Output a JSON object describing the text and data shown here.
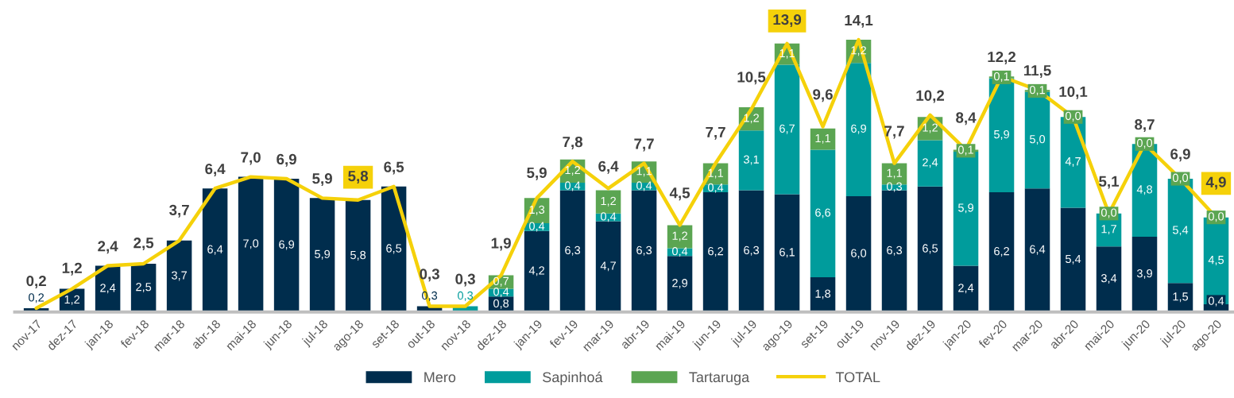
{
  "chart_data": {
    "type": "bar",
    "stacked": true,
    "legend": "bottom",
    "tick_labels": "x",
    "categories": [
      "nov-17",
      "dez-17",
      "jan-18",
      "fev-18",
      "mar-18",
      "abr-18",
      "mai-18",
      "jun-18",
      "jul-18",
      "ago-18",
      "set-18",
      "out-18",
      "nov-18",
      "dez-18",
      "jan-19",
      "fev-19",
      "mar-19",
      "abr-19",
      "mai-19",
      "jun-19",
      "jul-19",
      "ago-19",
      "set-19",
      "out-19",
      "nov-19",
      "dez-19",
      "jan-20",
      "fev-20",
      "mar-20",
      "abr-20",
      "mai-20",
      "jun-20",
      "jul-20",
      "ago-20"
    ],
    "series": [
      {
        "name": "Mero",
        "color": "#002d4d",
        "values": [
          0.2,
          1.2,
          2.4,
          2.5,
          3.7,
          6.4,
          7.0,
          6.9,
          5.9,
          5.8,
          6.5,
          0.3,
          null,
          0.8,
          4.2,
          6.3,
          4.7,
          6.3,
          2.9,
          6.2,
          6.3,
          6.1,
          1.8,
          6.0,
          6.3,
          6.5,
          2.4,
          6.2,
          6.4,
          5.4,
          3.4,
          3.9,
          1.5,
          0.4
        ],
        "value_labels": [
          "0,2",
          "1,2",
          "2,4",
          "2,5",
          "3,7",
          "6,4",
          "7,0",
          "6,9",
          "5,9",
          "5,8",
          "6,5",
          "0,3",
          null,
          "0,8",
          "4,2",
          "6,3",
          "4,7",
          "6,3",
          "2,9",
          "6,2",
          "6,3",
          "6,1",
          "1,8",
          "6,0",
          "6,3",
          "6,5",
          "2,4",
          "6,2",
          "6,4",
          "5,4",
          "3,4",
          "3,9",
          "1,5",
          "0,4"
        ]
      },
      {
        "name": "Sapinhoá",
        "color": "#009c9c",
        "values": [
          null,
          null,
          null,
          null,
          null,
          null,
          null,
          null,
          null,
          null,
          null,
          null,
          0.3,
          0.4,
          0.4,
          0.4,
          0.4,
          0.4,
          0.4,
          0.4,
          3.1,
          6.7,
          6.6,
          6.9,
          0.3,
          2.4,
          5.9,
          5.9,
          5.0,
          4.7,
          1.7,
          4.8,
          5.4,
          4.5
        ],
        "value_labels": [
          null,
          null,
          null,
          null,
          null,
          null,
          null,
          null,
          null,
          null,
          null,
          null,
          "0,3",
          "0,4",
          "0,4",
          "0,4",
          "0,4",
          "0,4",
          "0,4",
          "0,4",
          "3,1",
          "6,7",
          "6,6",
          "6,9",
          "0,3",
          "2,4",
          "5,9",
          "5,9",
          "5,0",
          "4,7",
          "1,7",
          "4,8",
          "5,4",
          "4,5"
        ]
      },
      {
        "name": "Tartaruga",
        "color": "#5ba552",
        "values": [
          null,
          null,
          null,
          null,
          null,
          null,
          null,
          null,
          null,
          null,
          null,
          null,
          null,
          0.7,
          1.3,
          1.2,
          1.2,
          1.1,
          1.2,
          1.1,
          1.2,
          1.1,
          1.1,
          1.2,
          1.1,
          1.2,
          0.1,
          0.1,
          0.1,
          0.0,
          0.0,
          0.0,
          0.0,
          0.0
        ],
        "value_labels": [
          null,
          null,
          null,
          null,
          null,
          null,
          null,
          null,
          null,
          null,
          null,
          null,
          null,
          "0,7",
          "1,3",
          "1,2",
          "1,2",
          "1,1",
          "1,2",
          "1,1",
          "1,2",
          "1,1",
          "1,1",
          "1,2",
          "1,1",
          "1,2",
          "0,1",
          "0,1",
          "0,1",
          "0,0",
          "0,0",
          "0,0",
          "0,0",
          "0,0"
        ]
      },
      {
        "name": "TOTAL",
        "type": "line",
        "color": "#f5d10a",
        "values": [
          0.2,
          1.2,
          2.4,
          2.5,
          3.7,
          6.4,
          7.0,
          6.9,
          5.9,
          5.8,
          6.5,
          0.3,
          0.3,
          1.9,
          5.9,
          7.8,
          6.4,
          7.7,
          4.5,
          7.7,
          10.5,
          13.9,
          9.6,
          14.1,
          7.7,
          10.2,
          8.4,
          12.2,
          11.5,
          10.1,
          5.1,
          8.7,
          6.9,
          4.9
        ],
        "value_labels": [
          "0,2",
          "1,2",
          "2,4",
          "2,5",
          "3,7",
          "6,4",
          "7,0",
          "6,9",
          "5,9",
          null,
          "6,5",
          "0,3",
          "0,3",
          "1,9",
          "5,9",
          "7,8",
          "6,4",
          "7,7",
          "4,5",
          "7,7",
          "10,5",
          null,
          "9,6",
          "14,1",
          "7,7",
          "10,2",
          "8,4",
          "12,2",
          "11,5",
          "10,1",
          "5,1",
          "8,7",
          "6,9",
          null
        ]
      }
    ],
    "annotations": [
      {
        "text": "5,8",
        "x": "ago-18",
        "y": 5.8
      },
      {
        "text": "13,9",
        "x": "ago-19",
        "y": 13.9
      },
      {
        "text": "4,9",
        "x": "ago-20",
        "y": 4.9
      }
    ]
  }
}
